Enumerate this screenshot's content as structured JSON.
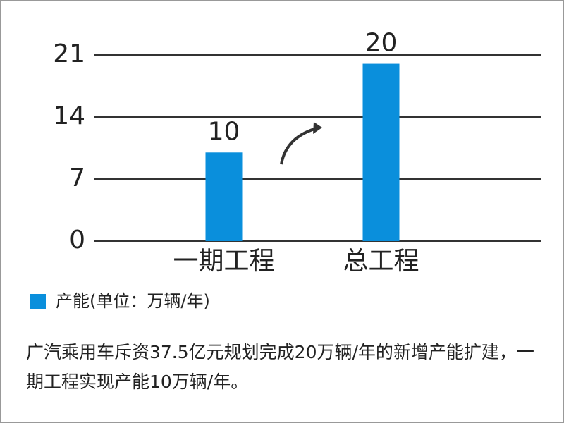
{
  "chart_data": {
    "type": "bar",
    "categories": [
      "一期工程",
      "总工程"
    ],
    "series": [
      {
        "name": "产能(单位：万辆/年)",
        "color": "#0a8fdc",
        "values": [
          10,
          20
        ]
      }
    ],
    "ylim": [
      0,
      21
    ],
    "yticks": [
      0,
      7,
      14,
      21
    ],
    "grid": true,
    "caption": "广汽乘用车斥资37.5亿元规划完成20万辆/年的新增产能扩建，一期工程实现产能10万辆/年。"
  }
}
